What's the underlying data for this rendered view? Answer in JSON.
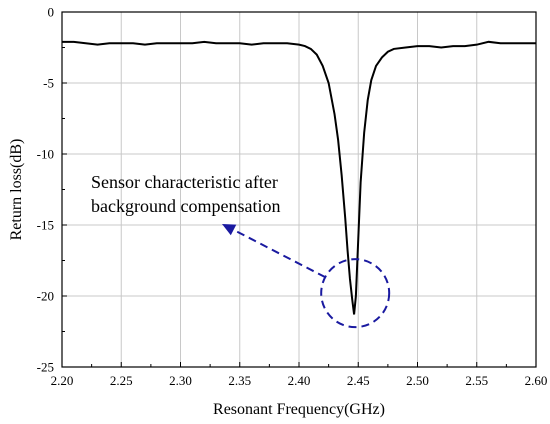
{
  "chart_data": {
    "type": "line",
    "title": "",
    "xlabel": "Resonant Frequency(GHz)",
    "ylabel": "Return loss(dB)",
    "xlim": [
      2.2,
      2.6
    ],
    "ylim": [
      -25,
      0
    ],
    "x_ticks": [
      "2.20",
      "2.25",
      "2.30",
      "2.35",
      "2.40",
      "2.45",
      "2.50",
      "2.55",
      "2.60"
    ],
    "y_ticks": [
      "0",
      "-5",
      "-10",
      "-15",
      "-20",
      "-25"
    ],
    "grid": true,
    "legend": "none",
    "line_color": "#000000",
    "annotation": {
      "lines": [
        "Sensor characteristic after",
        "background compensation"
      ],
      "color": "#1a1aa0",
      "circle_center": [
        2.447,
        -19.8
      ]
    },
    "series": [
      {
        "x": [
          2.2,
          2.21,
          2.22,
          2.23,
          2.24,
          2.25,
          2.26,
          2.27,
          2.28,
          2.29,
          2.3,
          2.31,
          2.32,
          2.33,
          2.34,
          2.35,
          2.36,
          2.37,
          2.38,
          2.39,
          2.4,
          2.405,
          2.41,
          2.415,
          2.42,
          2.425,
          2.43,
          2.433,
          2.436,
          2.439,
          2.441,
          2.443,
          2.445,
          2.4465,
          2.448,
          2.45,
          2.452,
          2.455,
          2.458,
          2.461,
          2.465,
          2.47,
          2.475,
          2.48,
          2.49,
          2.5,
          2.51,
          2.52,
          2.53,
          2.54,
          2.55,
          2.56,
          2.57,
          2.58,
          2.59,
          2.6
        ],
        "y": [
          -2.1,
          -2.1,
          -2.2,
          -2.3,
          -2.2,
          -2.2,
          -2.2,
          -2.3,
          -2.2,
          -2.2,
          -2.2,
          -2.2,
          -2.1,
          -2.2,
          -2.2,
          -2.2,
          -2.3,
          -2.2,
          -2.2,
          -2.2,
          -2.3,
          -2.4,
          -2.6,
          -3.0,
          -3.8,
          -5.0,
          -7.2,
          -9.0,
          -11.5,
          -14.5,
          -16.8,
          -18.8,
          -20.3,
          -21.3,
          -20.0,
          -16.0,
          -12.0,
          -8.5,
          -6.2,
          -4.8,
          -3.8,
          -3.2,
          -2.8,
          -2.6,
          -2.5,
          -2.4,
          -2.4,
          -2.5,
          -2.4,
          -2.4,
          -2.3,
          -2.1,
          -2.2,
          -2.2,
          -2.2,
          -2.2
        ]
      }
    ]
  }
}
